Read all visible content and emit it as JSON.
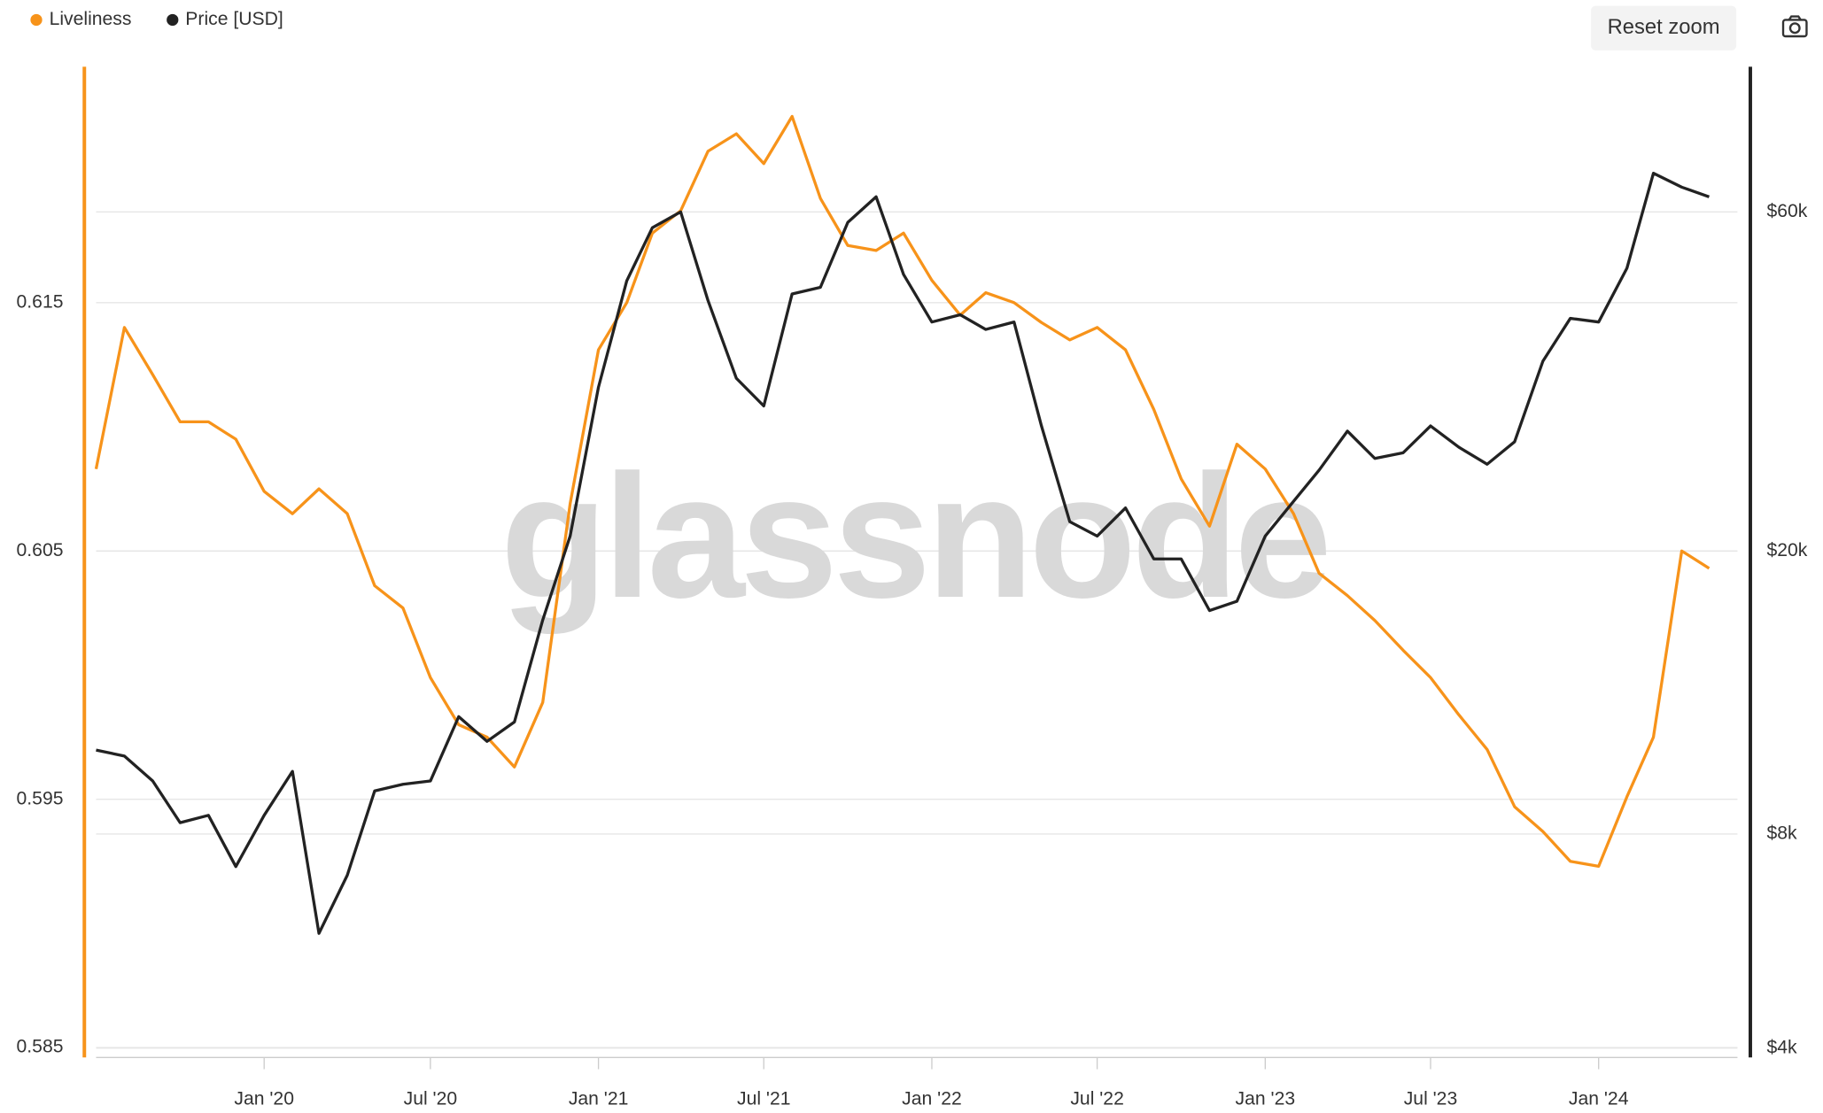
{
  "chart_data": {
    "type": "line",
    "watermark": "glassnode",
    "reset_button": "Reset zoom",
    "x": [
      "2019-07",
      "2019-08",
      "2019-09",
      "2019-10",
      "2019-11",
      "2019-12",
      "2020-01",
      "2020-02",
      "2020-03",
      "2020-04",
      "2020-05",
      "2020-06",
      "2020-07",
      "2020-08",
      "2020-09",
      "2020-10",
      "2020-11",
      "2020-12",
      "2021-01",
      "2021-02",
      "2021-03",
      "2021-04",
      "2021-05",
      "2021-06",
      "2021-07",
      "2021-08",
      "2021-09",
      "2021-10",
      "2021-11",
      "2021-12",
      "2022-01",
      "2022-02",
      "2022-03",
      "2022-04",
      "2022-05",
      "2022-06",
      "2022-07",
      "2022-08",
      "2022-09",
      "2022-10",
      "2022-11",
      "2022-12",
      "2023-01",
      "2023-02",
      "2023-03",
      "2023-04",
      "2023-05",
      "2023-06",
      "2023-07",
      "2023-08",
      "2023-09",
      "2023-10",
      "2023-11",
      "2023-12",
      "2024-01",
      "2024-02",
      "2024-03",
      "2024-04",
      "2024-05"
    ],
    "series": [
      {
        "name": "Liveliness",
        "color": "#f7931a",
        "axis": "y",
        "values": [
          0.6083,
          0.614,
          0.6121,
          0.6102,
          0.6102,
          0.6095,
          0.6074,
          0.6065,
          0.6075,
          0.6065,
          0.6036,
          0.6027,
          0.5999,
          0.598,
          0.5975,
          0.5963,
          0.5989,
          0.6069,
          0.6131,
          0.615,
          0.6178,
          0.6187,
          0.6211,
          0.6218,
          0.6206,
          0.6225,
          0.6192,
          0.6173,
          0.6171,
          0.6178,
          0.6159,
          0.6145,
          0.6154,
          0.615,
          0.6142,
          0.6135,
          0.614,
          0.6131,
          0.6107,
          0.6079,
          0.606,
          0.6093,
          0.6083,
          0.6065,
          0.6041,
          0.6032,
          0.6022,
          0.601,
          0.5999,
          0.5984,
          0.597,
          0.5947,
          0.5937,
          0.5925,
          0.5923,
          0.5951,
          0.5975,
          0.605,
          0.6043
        ]
      },
      {
        "name": "Price [USD]",
        "color": "#222222",
        "axis": "y2",
        "values": [
          10500,
          10300,
          9500,
          8300,
          8500,
          7200,
          8500,
          9800,
          5800,
          7000,
          9200,
          9400,
          9500,
          11700,
          10800,
          11500,
          16000,
          21000,
          34000,
          48000,
          57000,
          60000,
          45000,
          35000,
          32000,
          46000,
          47000,
          58000,
          63000,
          49000,
          42000,
          43000,
          41000,
          42000,
          30000,
          22000,
          21000,
          23000,
          19500,
          19500,
          16500,
          17000,
          21000,
          23500,
          26000,
          29500,
          27000,
          27500,
          30000,
          28000,
          26500,
          28500,
          37000,
          42500,
          42000,
          50000,
          68000,
          65000,
          63000
        ]
      }
    ],
    "xlim": [
      "2019-07",
      "2024-06"
    ],
    "xticks": [
      {
        "value": "2020-01",
        "label": "Jan '20"
      },
      {
        "value": "2020-07",
        "label": "Jul '20"
      },
      {
        "value": "2021-01",
        "label": "Jan '21"
      },
      {
        "value": "2021-07",
        "label": "Jul '21"
      },
      {
        "value": "2022-01",
        "label": "Jan '22"
      },
      {
        "value": "2022-07",
        "label": "Jul '22"
      },
      {
        "value": "2023-01",
        "label": "Jan '23"
      },
      {
        "value": "2023-07",
        "label": "Jul '23"
      },
      {
        "value": "2024-01",
        "label": "Jan '24"
      }
    ],
    "ylim": [
      0.5846,
      0.6245
    ],
    "yticks": [
      0.585,
      0.595,
      0.605,
      0.615
    ],
    "y2lim": [
      3880,
      96000
    ],
    "y2scale": "log",
    "y2ticks": [
      {
        "value": 4000,
        "label": "$4k"
      },
      {
        "value": 8000,
        "label": "$8k"
      },
      {
        "value": 20000,
        "label": "$20k"
      },
      {
        "value": 60000,
        "label": "$60k"
      }
    ],
    "grid": true,
    "legend": "top-left"
  }
}
